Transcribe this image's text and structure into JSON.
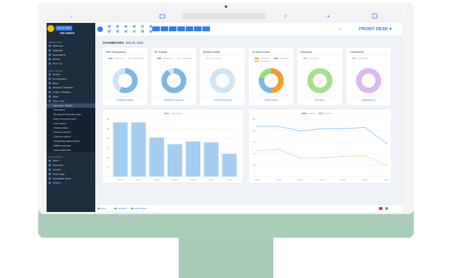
{
  "sidebar": {
    "property": "THE GARDEN",
    "date": "JUN 20, 2022",
    "sections": [
      {
        "title": "FRONT DESK",
        "items": [
          "Dashboard",
          "Calendars",
          "Reservations",
          "Groups",
          "POS / GC"
        ]
      },
      {
        "title": "BACK OFFICE",
        "items": [
          "Reports",
          "Housekeeping",
          "Rates",
          "Channels / Overrides",
          "Codes / Templates",
          "Setup",
          "Other / Help",
          "New Tools - RULES",
          "Translations",
          "Pre-arrival / Post-stay emails",
          "News / Announcements",
          "User manual",
          "Training videos",
          "Property overview",
          "Customer support",
          "Outstanding support tickets",
          "Affiliate properties",
          "Small backup files"
        ]
      },
      {
        "title": "ACCOUNTING",
        "items": [
          "Admin",
          "Customers",
          "General",
          "Point of sale",
          "Receivables admin",
          "Vendors"
        ]
      }
    ]
  },
  "header": {
    "mode": "FRONT DESK ▾",
    "title": "DASHBOARD",
    "date": "→ JUN 20, 2022"
  },
  "cards": [
    {
      "title": "58% Occupancy",
      "link": "Property stats ▸",
      "values": [
        58,
        42
      ],
      "colors": [
        "#7db7e5",
        "#cfe4f5"
      ]
    },
    {
      "title": "32 Guests",
      "link": "Guests in house ▸",
      "values": [
        92,
        8
      ],
      "colors": [
        "#7db7e5",
        "#cfe4f5"
      ]
    },
    {
      "title": "Booked today",
      "link": "Current reports ▸",
      "values": [
        100
      ],
      "colors": [
        "#cfe4f5"
      ]
    },
    {
      "title": "13 Avail rooms",
      "link": "Book now ▸",
      "values": [
        50,
        30,
        20
      ],
      "colors": [
        "#f39c2c",
        "#7db7e5",
        "#9fdc7c"
      ]
    },
    {
      "title": "6 Arrivals",
      "link": "Arrivals ▸",
      "values": [
        100
      ],
      "colors": [
        "#a6e08a"
      ]
    },
    {
      "title": "1 Departure",
      "link": "Departure ▸",
      "values": [
        100
      ],
      "colors": [
        "#dcb8ee"
      ]
    }
  ],
  "bar_chart": {
    "values": [
      57,
      57,
      41,
      34,
      37,
      36,
      24
    ],
    "color": "#a6cdf0",
    "ylim": [
      0,
      60
    ],
    "yticks": [
      0,
      10,
      20,
      30,
      40,
      50,
      60
    ]
  },
  "line_chart": {
    "ylim": [
      0,
      100
    ],
    "yticks": [
      0,
      20,
      40,
      60,
      80,
      100
    ],
    "series": [
      {
        "color": "#8cc3ec",
        "values": [
          88,
          88,
          80,
          84,
          84,
          86,
          58
        ]
      },
      {
        "color": "#a6e08a",
        "values": [
          45,
          48,
          32,
          33,
          35,
          36,
          20
        ]
      }
    ]
  },
  "footer": [
    "HELP",
    "UPDATES",
    "SUBSCRIBE"
  ]
}
